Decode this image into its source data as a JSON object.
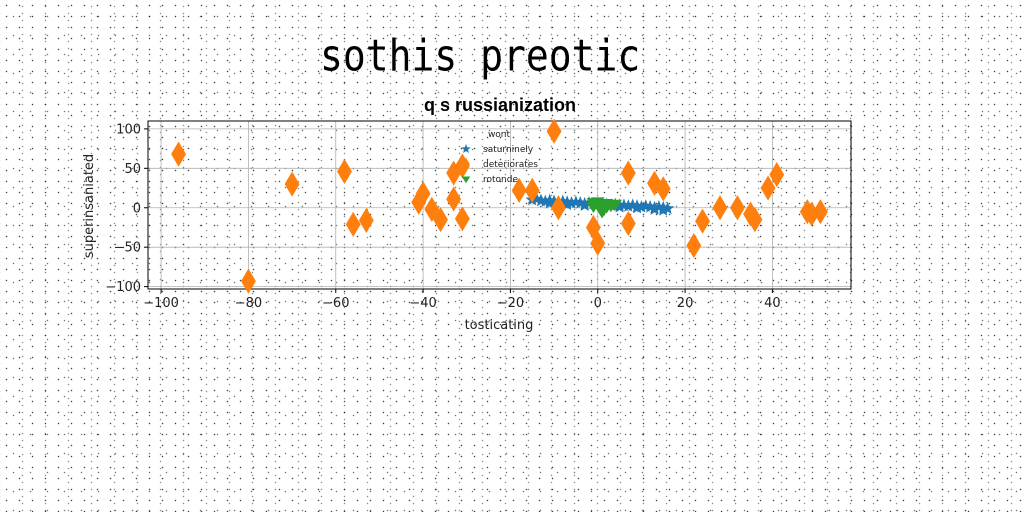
{
  "page": {
    "title": "sothis preotic"
  },
  "chart_data": {
    "type": "scatter",
    "title": "q s russianization",
    "xlabel": "tosticating",
    "ylabel": "superinsaniated",
    "xlim": [
      -103,
      58
    ],
    "ylim": [
      -103,
      110
    ],
    "x_ticks": [
      -100,
      -80,
      -60,
      -40,
      -20,
      0,
      20,
      40
    ],
    "y_ticks": [
      -100,
      -50,
      0,
      50,
      100
    ],
    "grid": true,
    "legend": {
      "title": "wont",
      "placement": "top-center",
      "entries": [
        "saturninely",
        "deteriorates",
        "rotonde"
      ]
    },
    "series": [
      {
        "name": "saturninely",
        "marker": "star",
        "color": "#1f77b4",
        "points": [
          [
            -15,
            10
          ],
          [
            -13,
            9
          ],
          [
            -12,
            8
          ],
          [
            -11,
            9
          ],
          [
            -10,
            8
          ],
          [
            -9,
            7
          ],
          [
            -8,
            8
          ],
          [
            -7,
            7
          ],
          [
            -6,
            6
          ],
          [
            -5,
            7
          ],
          [
            -4,
            6
          ],
          [
            -3,
            5
          ],
          [
            -2,
            6
          ],
          [
            -1,
            5
          ],
          [
            0,
            4
          ],
          [
            1,
            5
          ],
          [
            2,
            4
          ],
          [
            3,
            3
          ],
          [
            4,
            4
          ],
          [
            5,
            3
          ],
          [
            6,
            3
          ],
          [
            7,
            2
          ],
          [
            8,
            3
          ],
          [
            9,
            2
          ],
          [
            10,
            1
          ],
          [
            11,
            2
          ],
          [
            12,
            1
          ],
          [
            13,
            0
          ],
          [
            14,
            1
          ],
          [
            15,
            0
          ],
          [
            16,
            -1
          ],
          [
            -14,
            11
          ],
          [
            -11,
            6
          ],
          [
            -7,
            4
          ],
          [
            -3,
            3
          ],
          [
            1,
            2
          ],
          [
            5,
            1
          ],
          [
            9,
            0
          ],
          [
            13,
            -2
          ],
          [
            15,
            -3
          ]
        ]
      },
      {
        "name": "deteriorates",
        "marker": "thin_diamond",
        "color": "#ff7f0e",
        "points": [
          [
            -96,
            68
          ],
          [
            -80,
            -93
          ],
          [
            -70,
            30
          ],
          [
            -58,
            46
          ],
          [
            -56,
            -21
          ],
          [
            -53,
            -16
          ],
          [
            -41,
            7
          ],
          [
            -40,
            18
          ],
          [
            -38,
            -2
          ],
          [
            -36,
            -15
          ],
          [
            -33,
            44
          ],
          [
            -33,
            11
          ],
          [
            -31,
            -14
          ],
          [
            -31,
            53
          ],
          [
            -18,
            22
          ],
          [
            -15,
            22
          ],
          [
            -10,
            97
          ],
          [
            -9,
            0
          ],
          [
            -1,
            -25
          ],
          [
            0,
            -45
          ],
          [
            7,
            44
          ],
          [
            7,
            -20
          ],
          [
            13,
            31
          ],
          [
            15,
            24
          ],
          [
            22,
            -48
          ],
          [
            24,
            -17
          ],
          [
            28,
            0
          ],
          [
            32,
            0
          ],
          [
            35,
            -8
          ],
          [
            36,
            -15
          ],
          [
            39,
            25
          ],
          [
            41,
            42
          ],
          [
            48,
            -5
          ],
          [
            49,
            -8
          ],
          [
            51,
            -5
          ]
        ]
      },
      {
        "name": "rotonde",
        "marker": "triangle_down",
        "color": "#2ca02c",
        "points": [
          [
            -1,
            7
          ],
          [
            0,
            5
          ],
          [
            1,
            4
          ],
          [
            2,
            6
          ],
          [
            3,
            3
          ],
          [
            1,
            -5
          ],
          [
            0,
            8
          ],
          [
            2,
            1
          ],
          [
            4,
            5
          ],
          [
            -1,
            2
          ]
        ]
      }
    ]
  }
}
